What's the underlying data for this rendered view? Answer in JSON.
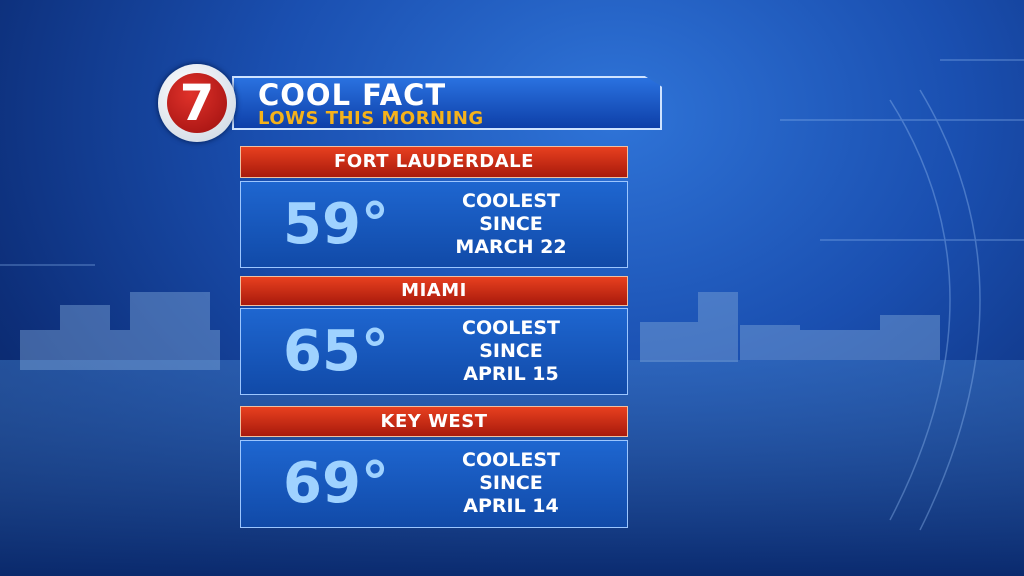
{
  "header": {
    "logo": "7",
    "title": "COOL FACT",
    "subtitle": "LOWS THIS MORNING"
  },
  "cities": [
    {
      "name": "FORT LAUDERDALE",
      "temp": "59°",
      "note": [
        "COOLEST",
        "SINCE",
        "MARCH 22"
      ]
    },
    {
      "name": "MIAMI",
      "temp": "65°",
      "note": [
        "COOLEST",
        "SINCE",
        "APRIL 15"
      ]
    },
    {
      "name": "KEY WEST",
      "temp": "69°",
      "note": [
        "COOLEST",
        "SINCE",
        "APRIL 14"
      ]
    }
  ]
}
